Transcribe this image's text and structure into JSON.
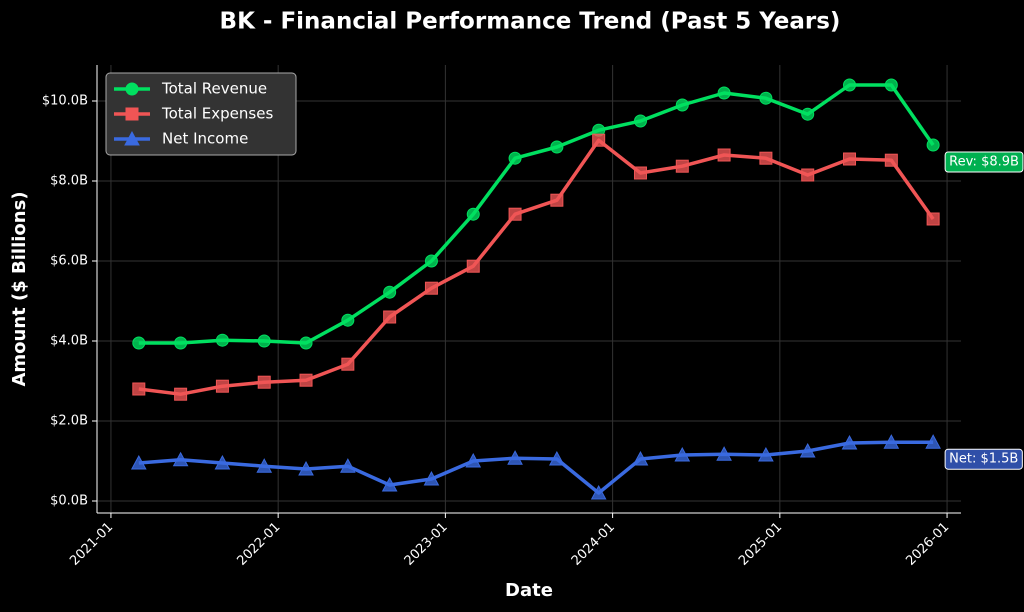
{
  "chart_data": {
    "type": "line",
    "title": "BK - Financial Performance Trend (Past 5 Years)",
    "x_label": "Date",
    "y_label": "Amount ($ Billions)",
    "x": [
      "2021-03",
      "2021-06",
      "2021-09",
      "2021-12",
      "2022-03",
      "2022-06",
      "2022-09",
      "2022-12",
      "2023-03",
      "2023-06",
      "2023-09",
      "2023-12",
      "2024-03",
      "2024-06",
      "2024-09",
      "2024-12",
      "2025-03",
      "2025-06",
      "2025-09",
      "2025-12"
    ],
    "series": [
      {
        "name": "Total Revenue",
        "color": "#00e060",
        "marker": "circle",
        "values": [
          3.95,
          3.95,
          4.02,
          4.0,
          3.95,
          4.52,
          5.22,
          6.0,
          7.17,
          8.57,
          8.85,
          9.27,
          9.5,
          9.9,
          10.2,
          10.07,
          9.67,
          10.4,
          10.4,
          8.9
        ]
      },
      {
        "name": "Total Expenses",
        "color": "#f05555",
        "marker": "square",
        "values": [
          2.8,
          2.67,
          2.87,
          2.97,
          3.02,
          3.42,
          4.6,
          5.32,
          5.87,
          7.17,
          7.52,
          9.02,
          8.2,
          8.37,
          8.65,
          8.57,
          8.15,
          8.55,
          8.52,
          7.05
        ]
      },
      {
        "name": "Net Income",
        "color": "#3a6ae0",
        "marker": "triangle",
        "values": [
          0.95,
          1.03,
          0.95,
          0.87,
          0.8,
          0.87,
          0.4,
          0.55,
          1.0,
          1.07,
          1.05,
          0.2,
          1.05,
          1.15,
          1.17,
          1.15,
          1.25,
          1.45,
          1.47,
          1.47
        ]
      }
    ],
    "annotations": [
      {
        "text": "Rev: $8.9B",
        "color": "#00b050"
      },
      {
        "text": "Net: $1.5B",
        "color": "#2f4fa8"
      }
    ],
    "xlim": [
      "2020-12",
      "2026-02"
    ],
    "xticks": [
      "2021-01",
      "2022-01",
      "2023-01",
      "2024-01",
      "2025-01",
      "2026-01"
    ],
    "ylim": [
      -0.3,
      10.9
    ],
    "yticks": [
      {
        "value": 0,
        "label": "$0.0B"
      },
      {
        "value": 2,
        "label": "$2.0B"
      },
      {
        "value": 4,
        "label": "$4.0B"
      },
      {
        "value": 6,
        "label": "$6.0B"
      },
      {
        "value": 8,
        "label": "$8.0B"
      },
      {
        "value": 10,
        "label": "$10.0B"
      }
    ],
    "grid": true,
    "legend": "upper-left"
  }
}
